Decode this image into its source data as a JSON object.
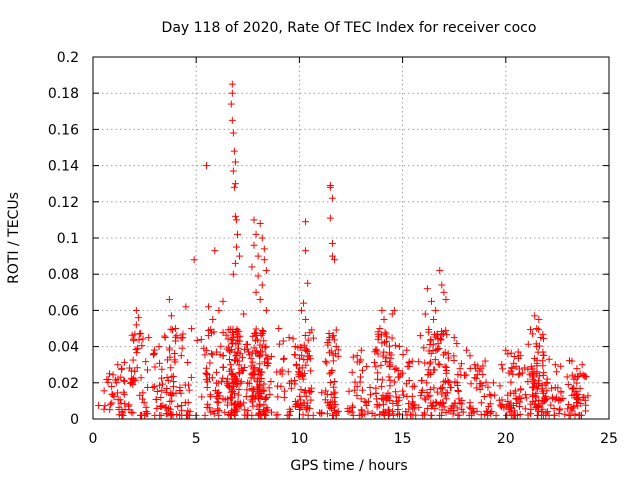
{
  "chart_data": {
    "type": "scatter",
    "title": "Day 118 of 2020, Rate Of TEC Index for receiver coco",
    "xlabel": "GPS time / hours",
    "ylabel": "ROTI / TECUs",
    "xlim": [
      0,
      25
    ],
    "ylim": [
      0,
      0.2
    ],
    "xticks": [
      0,
      5,
      10,
      15,
      20,
      25
    ],
    "yticks": [
      0,
      0.02,
      0.04,
      0.06,
      0.08,
      0.1,
      0.12,
      0.14,
      0.16,
      0.18,
      0.2
    ],
    "grid": true,
    "marker": "plus",
    "color": "#ff0000",
    "series": [
      {
        "values": [
          {
            "x": 5.5,
            "y": 0.14
          },
          {
            "x": 6.75,
            "y": 0.185
          },
          {
            "x": 6.75,
            "y": 0.18
          },
          {
            "x": 6.7,
            "y": 0.174
          },
          {
            "x": 6.75,
            "y": 0.165
          },
          {
            "x": 6.8,
            "y": 0.158
          },
          {
            "x": 6.85,
            "y": 0.148
          },
          {
            "x": 6.9,
            "y": 0.142
          },
          {
            "x": 6.8,
            "y": 0.137
          },
          {
            "x": 6.9,
            "y": 0.13
          },
          {
            "x": 6.85,
            "y": 0.128
          },
          {
            "x": 6.9,
            "y": 0.112
          },
          {
            "x": 6.95,
            "y": 0.11
          },
          {
            "x": 7.0,
            "y": 0.102
          },
          {
            "x": 6.95,
            "y": 0.095
          },
          {
            "x": 6.9,
            "y": 0.086
          },
          {
            "x": 6.8,
            "y": 0.08
          },
          {
            "x": 7.1,
            "y": 0.09
          },
          {
            "x": 7.8,
            "y": 0.11
          },
          {
            "x": 8.1,
            "y": 0.108
          },
          {
            "x": 7.9,
            "y": 0.102
          },
          {
            "x": 8.2,
            "y": 0.1
          },
          {
            "x": 7.8,
            "y": 0.096
          },
          {
            "x": 8.0,
            "y": 0.09
          },
          {
            "x": 8.3,
            "y": 0.094
          },
          {
            "x": 8.3,
            "y": 0.088
          },
          {
            "x": 8.4,
            "y": 0.082
          },
          {
            "x": 7.7,
            "y": 0.084
          },
          {
            "x": 8.0,
            "y": 0.079
          },
          {
            "x": 8.2,
            "y": 0.074
          },
          {
            "x": 7.9,
            "y": 0.07
          },
          {
            "x": 8.1,
            "y": 0.066
          },
          {
            "x": 8.4,
            "y": 0.06
          },
          {
            "x": 5.9,
            "y": 0.093
          },
          {
            "x": 4.9,
            "y": 0.088
          },
          {
            "x": 10.3,
            "y": 0.109
          },
          {
            "x": 10.3,
            "y": 0.093
          },
          {
            "x": 10.4,
            "y": 0.075
          },
          {
            "x": 10.2,
            "y": 0.064
          },
          {
            "x": 10.1,
            "y": 0.06
          },
          {
            "x": 10.3,
            "y": 0.055
          },
          {
            "x": 11.5,
            "y": 0.129
          },
          {
            "x": 11.5,
            "y": 0.128
          },
          {
            "x": 11.6,
            "y": 0.122
          },
          {
            "x": 11.5,
            "y": 0.111
          },
          {
            "x": 11.6,
            "y": 0.097
          },
          {
            "x": 11.6,
            "y": 0.09
          },
          {
            "x": 11.7,
            "y": 0.088
          },
          {
            "x": 16.8,
            "y": 0.082
          },
          {
            "x": 16.9,
            "y": 0.074
          },
          {
            "x": 17.0,
            "y": 0.07
          },
          {
            "x": 16.2,
            "y": 0.072
          },
          {
            "x": 16.4,
            "y": 0.065
          },
          {
            "x": 17.1,
            "y": 0.066
          },
          {
            "x": 16.6,
            "y": 0.06
          },
          {
            "x": 16.1,
            "y": 0.058
          },
          {
            "x": 16.5,
            "y": 0.055
          },
          {
            "x": 14.0,
            "y": 0.06
          },
          {
            "x": 14.1,
            "y": 0.055
          },
          {
            "x": 13.9,
            "y": 0.05
          },
          {
            "x": 14.6,
            "y": 0.06
          },
          {
            "x": 14.5,
            "y": 0.058
          },
          {
            "x": 14.2,
            "y": 0.047
          },
          {
            "x": 13.0,
            "y": 0.038
          },
          {
            "x": 14.0,
            "y": 0.042
          },
          {
            "x": 15.2,
            "y": 0.038
          },
          {
            "x": 12.8,
            "y": 0.035
          },
          {
            "x": 17.5,
            "y": 0.045
          },
          {
            "x": 18.1,
            "y": 0.038
          },
          {
            "x": 18.5,
            "y": 0.03
          },
          {
            "x": 19.0,
            "y": 0.032
          },
          {
            "x": 19.4,
            "y": 0.02
          },
          {
            "x": 20.0,
            "y": 0.038
          },
          {
            "x": 20.1,
            "y": 0.036
          },
          {
            "x": 20.6,
            "y": 0.037
          },
          {
            "x": 20.7,
            "y": 0.035
          },
          {
            "x": 20.3,
            "y": 0.028
          },
          {
            "x": 21.4,
            "y": 0.057
          },
          {
            "x": 21.6,
            "y": 0.055
          },
          {
            "x": 21.5,
            "y": 0.05
          },
          {
            "x": 21.3,
            "y": 0.047
          },
          {
            "x": 21.7,
            "y": 0.045
          },
          {
            "x": 21.5,
            "y": 0.04
          },
          {
            "x": 21.8,
            "y": 0.037
          },
          {
            "x": 22.1,
            "y": 0.033
          },
          {
            "x": 22.4,
            "y": 0.03
          },
          {
            "x": 23.2,
            "y": 0.032
          },
          {
            "x": 23.7,
            "y": 0.03
          },
          {
            "x": 23.6,
            "y": 0.025
          },
          {
            "x": 23.3,
            "y": 0.022
          },
          {
            "x": 2.1,
            "y": 0.06
          },
          {
            "x": 2.2,
            "y": 0.056
          },
          {
            "x": 2.1,
            "y": 0.052
          },
          {
            "x": 3.7,
            "y": 0.066
          },
          {
            "x": 4.5,
            "y": 0.062
          },
          {
            "x": 3.8,
            "y": 0.057
          },
          {
            "x": 4.0,
            "y": 0.05
          },
          {
            "x": 5.6,
            "y": 0.062
          },
          {
            "x": 6.1,
            "y": 0.06
          },
          {
            "x": 6.3,
            "y": 0.065
          },
          {
            "x": 7.3,
            "y": 0.058
          },
          {
            "x": 5.8,
            "y": 0.055
          },
          {
            "x": 3.5,
            "y": 0.045
          },
          {
            "x": 3.2,
            "y": 0.04
          },
          {
            "x": 2.7,
            "y": 0.045
          },
          {
            "x": 1.2,
            "y": 0.03
          },
          {
            "x": 1.4,
            "y": 0.028
          },
          {
            "x": 0.8,
            "y": 0.025
          },
          {
            "x": 9.0,
            "y": 0.05
          },
          {
            "x": 9.5,
            "y": 0.045
          },
          {
            "x": 9.8,
            "y": 0.04
          }
        ]
      }
    ]
  }
}
